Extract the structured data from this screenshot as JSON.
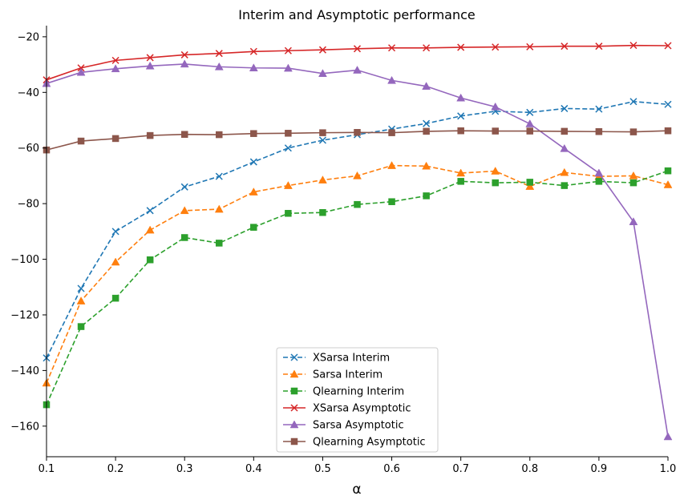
{
  "chart_data": {
    "type": "line",
    "title": "Interim and Asymptotic performance",
    "xlabel": "α",
    "ylabel": "",
    "xlim": [
      0.1,
      1.0
    ],
    "ylim": [
      -171,
      -16
    ],
    "x_ticks": [
      "0.1",
      "0.2",
      "0.3",
      "0.4",
      "0.5",
      "0.6",
      "0.7",
      "0.8",
      "0.9",
      "1.0"
    ],
    "y_ticks": [
      "−20",
      "−40",
      "−60",
      "−80",
      "−100",
      "−120",
      "−140",
      "−160"
    ],
    "x_tick_values": [
      0.1,
      0.2,
      0.3,
      0.4,
      0.5,
      0.6,
      0.7,
      0.8,
      0.9,
      1.0
    ],
    "y_tick_values": [
      -20,
      -40,
      -60,
      -80,
      -100,
      -120,
      -140,
      -160
    ],
    "grid": false,
    "legend_position": "bottom-center",
    "x": [
      0.1,
      0.15,
      0.2,
      0.25,
      0.3,
      0.35,
      0.4,
      0.45,
      0.5,
      0.55,
      0.6,
      0.65,
      0.7,
      0.75,
      0.8,
      0.85,
      0.9,
      0.95,
      1.0
    ],
    "series": [
      {
        "name": "XSarsa Interim",
        "color": "#1f77b4",
        "dash": true,
        "marker": "x",
        "values": [
          -135.5,
          -110.5,
          -90,
          -82.5,
          -74,
          -70.2,
          -65,
          -60,
          -57.2,
          -55.2,
          -53.2,
          -51.2,
          -48.5,
          -46.8,
          -47.2,
          -45.8,
          -46,
          -43.3,
          -44.3
        ]
      },
      {
        "name": "Sarsa Interim",
        "color": "#ff7f0e",
        "dash": true,
        "marker": "triangle",
        "values": [
          -144.5,
          -115,
          -101,
          -89.5,
          -82.5,
          -82,
          -75.8,
          -73.5,
          -71.5,
          -70,
          -66.3,
          -66.5,
          -69,
          -68.3,
          -73.8,
          -68.8,
          -70.2,
          -70,
          -73.2
        ]
      },
      {
        "name": "Qlearning Interim",
        "color": "#2ca02c",
        "dash": true,
        "marker": "square",
        "values": [
          -152.3,
          -124.2,
          -114,
          -100.2,
          -92.2,
          -94.2,
          -88.5,
          -83.5,
          -83.2,
          -80.3,
          -79.3,
          -77.2,
          -72,
          -72.5,
          -72.3,
          -73.5,
          -72,
          -72.5,
          -68.2
        ]
      },
      {
        "name": "XSarsa Asymptotic",
        "color": "#d62728",
        "dash": false,
        "marker": "x",
        "values": [
          -35.5,
          -31.2,
          -28.5,
          -27.5,
          -26.5,
          -26,
          -25.3,
          -25,
          -24.7,
          -24.3,
          -24,
          -24,
          -23.8,
          -23.7,
          -23.6,
          -23.4,
          -23.4,
          -23.1,
          -23.2
        ]
      },
      {
        "name": "Sarsa Asymptotic",
        "color": "#9467bd",
        "dash": false,
        "marker": "triangle",
        "values": [
          -36.8,
          -32.8,
          -31.5,
          -30.5,
          -29.8,
          -30.8,
          -31.2,
          -31.3,
          -33.2,
          -32,
          -35.7,
          -37.8,
          -42,
          -45.2,
          -51.3,
          -60.2,
          -69,
          -86.5,
          -163.8
        ]
      },
      {
        "name": "Qlearning Asymptotic",
        "color": "#8c564b",
        "dash": false,
        "marker": "square",
        "values": [
          -60.7,
          -57.5,
          -56.6,
          -55.5,
          -55.1,
          -55.2,
          -54.8,
          -54.7,
          -54.5,
          -54.4,
          -54.5,
          -54,
          -53.8,
          -53.9,
          -53.9,
          -54,
          -54.1,
          -54.2,
          -53.8
        ]
      }
    ]
  }
}
